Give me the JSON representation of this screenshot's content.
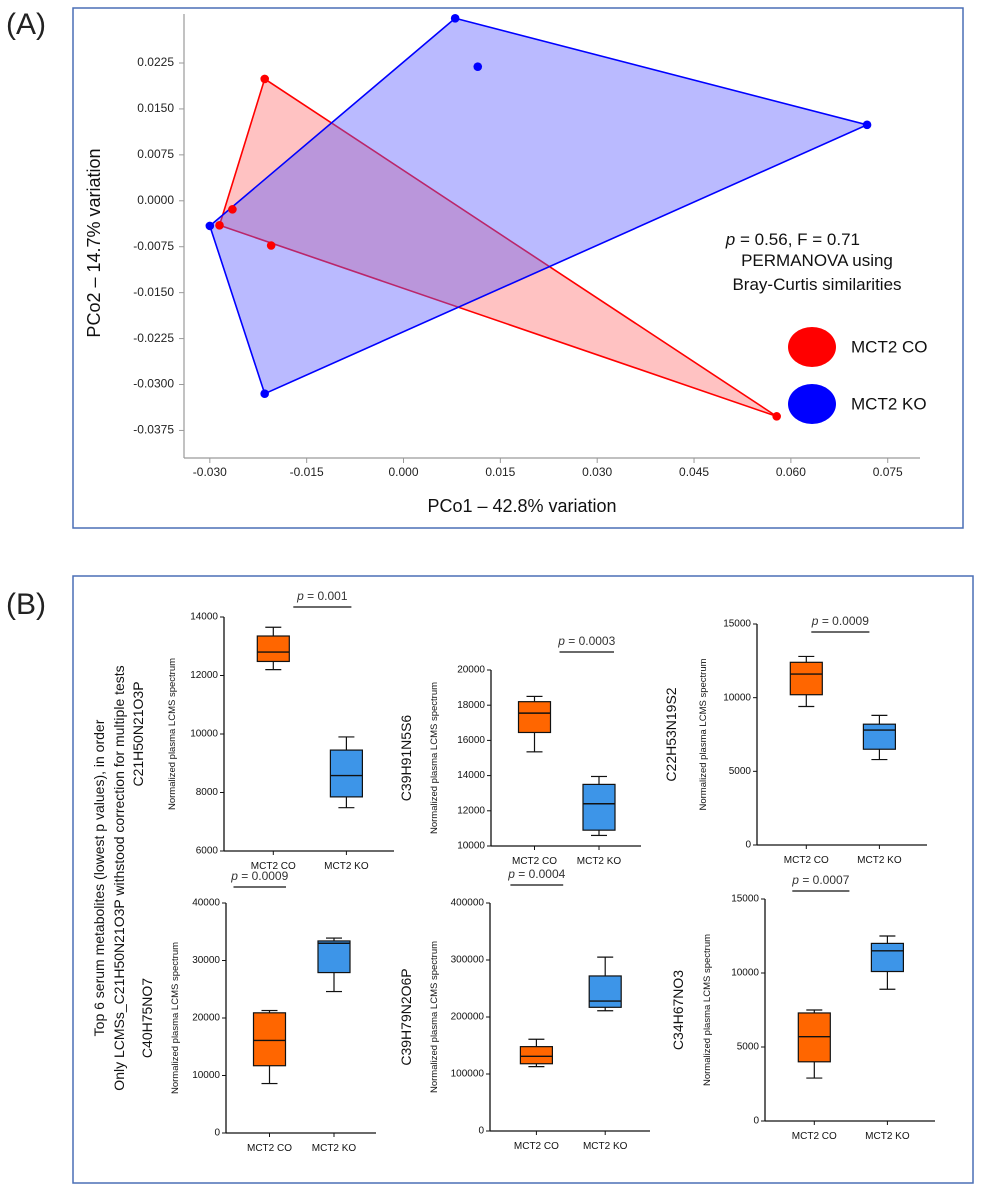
{
  "panel_a": {
    "label": "(A)",
    "stats_line1_p": "p",
    "stats_line1_rest": " = 0.56, F = 0.71",
    "stats_line2": "PERMANOVA  using",
    "stats_line3": "Bray-Curtis similarities",
    "legend": [
      {
        "label": "MCT2 CO",
        "color": "#ff0000"
      },
      {
        "label": "MCT2 KO",
        "color": "#0000ff"
      }
    ]
  },
  "panel_b": {
    "label": "(B)",
    "side_text_line1": "Top 6 serum metabolites (lowest p values), in order",
    "side_text_line2": "Only LCMSs_C21H50N21O3P  withstood correction for multiple tests"
  },
  "chart_data": [
    {
      "type": "scatter",
      "title": "",
      "xlabel": "PCo1 – 42.8% variation",
      "ylabel": "PCo2 – 14.7% variation",
      "xlim": [
        -0.034,
        0.08
      ],
      "ylim": [
        -0.042,
        0.0305
      ],
      "xticks": [
        "-0.030",
        "-0.015",
        "0.000",
        "0.015",
        "0.030",
        "0.045",
        "0.060",
        "0.075"
      ],
      "xtick_values": [
        -0.03,
        -0.015,
        0.0,
        0.015,
        0.03,
        0.045,
        0.06,
        0.075
      ],
      "yticks": [
        "0.0225",
        "0.0150",
        "0.0075",
        "0.0000",
        "-0.0075",
        "-0.0150",
        "-0.0225",
        "-0.0300",
        "-0.0375"
      ],
      "ytick_values": [
        0.0225,
        0.015,
        0.0075,
        0.0,
        -0.0075,
        -0.015,
        -0.0225,
        -0.03,
        -0.0375
      ],
      "series": [
        {
          "name": "MCT2 CO",
          "color": "#ff0000",
          "fill": "rgba(255,120,120,0.45)",
          "points": [
            [
              -0.0215,
              0.0199
            ],
            [
              -0.0265,
              -0.0014
            ],
            [
              -0.0285,
              -0.004
            ],
            [
              -0.0205,
              -0.0073
            ],
            [
              0.0578,
              -0.0352
            ]
          ],
          "hull": [
            [
              -0.0215,
              0.0199
            ],
            [
              -0.0285,
              -0.004
            ],
            [
              0.0578,
              -0.0352
            ]
          ]
        },
        {
          "name": "MCT2 KO",
          "color": "#0000ff",
          "fill": "rgba(90,90,255,0.42)",
          "points": [
            [
              0.008,
              0.0298
            ],
            [
              0.0115,
              0.0219
            ],
            [
              0.0718,
              0.0124
            ],
            [
              -0.03,
              -0.0041
            ],
            [
              -0.0215,
              -0.0315
            ]
          ],
          "hull": [
            [
              0.008,
              0.0298
            ],
            [
              0.0718,
              0.0124
            ],
            [
              -0.0215,
              -0.0315
            ],
            [
              -0.03,
              -0.0041
            ]
          ]
        }
      ]
    },
    {
      "type": "box",
      "title": "C21H50N21O3P",
      "ylabel": "Normalized plasma LCMS spectrum",
      "categories": [
        "MCT2 CO",
        "MCT2 KO"
      ],
      "ylim": [
        6000,
        14000
      ],
      "yticks": [
        "6000",
        "8000",
        "10000",
        "12000",
        "14000"
      ],
      "ytick_values": [
        6000,
        8000,
        10000,
        12000,
        14000
      ],
      "p_italic": "p",
      "p_rest": " = 0.001",
      "boxes": [
        {
          "min": 12200,
          "q1": 12480,
          "median": 12800,
          "q3": 13350,
          "max": 13650,
          "color": "#ff6600"
        },
        {
          "min": 7480,
          "q1": 7850,
          "median": 8580,
          "q3": 9450,
          "max": 9900,
          "color": "#3d95e8"
        }
      ]
    },
    {
      "type": "box",
      "title": "C39H91N5S6",
      "ylabel": "Normalized plasma LCMS spectrum",
      "categories": [
        "MCT2 CO",
        "MCT2 KO"
      ],
      "ylim": [
        10000,
        20000
      ],
      "yticks": [
        "10000",
        "12000",
        "14000",
        "16000",
        "18000",
        "20000"
      ],
      "ytick_values": [
        10000,
        12000,
        14000,
        16000,
        18000,
        20000
      ],
      "p_italic": "p",
      "p_rest": " = 0.0003",
      "boxes": [
        {
          "min": 15350,
          "q1": 16450,
          "median": 17550,
          "q3": 18200,
          "max": 18500,
          "color": "#ff6600"
        },
        {
          "min": 10600,
          "q1": 10900,
          "median": 12400,
          "q3": 13500,
          "max": 13950,
          "color": "#3d95e8"
        }
      ]
    },
    {
      "type": "box",
      "title": "C22H53N19S2",
      "ylabel": "Normalized plasma LCMS spectrum",
      "categories": [
        "MCT2 CO",
        "MCT2 KO"
      ],
      "ylim": [
        0,
        15000
      ],
      "yticks": [
        "0",
        "5000",
        "10000",
        "15000"
      ],
      "ytick_values": [
        0,
        5000,
        10000,
        15000
      ],
      "p_italic": "p",
      "p_rest": " = 0.0009",
      "boxes": [
        {
          "min": 9400,
          "q1": 10200,
          "median": 11600,
          "q3": 12400,
          "max": 12800,
          "color": "#ff6600"
        },
        {
          "min": 5800,
          "q1": 6500,
          "median": 7800,
          "q3": 8200,
          "max": 8800,
          "color": "#3d95e8"
        }
      ]
    },
    {
      "type": "box",
      "title": "C40H75NO7",
      "ylabel": "Normalized plasma LCMS spectrum",
      "categories": [
        "MCT2 CO",
        "MCT2 KO"
      ],
      "ylim": [
        0,
        40000
      ],
      "yticks": [
        "0",
        "10000",
        "20000",
        "30000",
        "40000"
      ],
      "ytick_values": [
        0,
        10000,
        20000,
        30000,
        40000
      ],
      "p_italic": "p",
      "p_rest": " = 0.0009",
      "boxes": [
        {
          "min": 8600,
          "q1": 11700,
          "median": 16100,
          "q3": 20900,
          "max": 21300,
          "color": "#ff6600"
        },
        {
          "min": 24600,
          "q1": 27900,
          "median": 33000,
          "q3": 33400,
          "max": 33900,
          "color": "#3d95e8"
        }
      ]
    },
    {
      "type": "box",
      "title": "C39H79N2O6P",
      "ylabel": "Normalized plasma LCMS spectrum",
      "categories": [
        "MCT2 CO",
        "MCT2 KO"
      ],
      "ylim": [
        0,
        400000
      ],
      "yticks": [
        "0",
        "100000",
        "200000",
        "300000",
        "400000"
      ],
      "ytick_values": [
        0,
        100000,
        200000,
        300000,
        400000
      ],
      "p_italic": "p",
      "p_rest": " = 0.0004",
      "boxes": [
        {
          "min": 113000,
          "q1": 118000,
          "median": 131000,
          "q3": 148000,
          "max": 161000,
          "color": "#ff6600"
        },
        {
          "min": 211000,
          "q1": 217000,
          "median": 228000,
          "q3": 272000,
          "max": 305000,
          "color": "#3d95e8"
        }
      ]
    },
    {
      "type": "box",
      "title": "C34H67NO3",
      "ylabel": "Normalized plasma LCMS spectrum",
      "categories": [
        "MCT2 CO",
        "MCT2 KO"
      ],
      "ylim": [
        0,
        15000
      ],
      "yticks": [
        "0",
        "5000",
        "10000",
        "15000"
      ],
      "ytick_values": [
        0,
        5000,
        10000,
        15000
      ],
      "p_italic": "p",
      "p_rest": " = 0.0007",
      "boxes": [
        {
          "min": 2900,
          "q1": 4000,
          "median": 5700,
          "q3": 7300,
          "max": 7500,
          "color": "#ff6600"
        },
        {
          "min": 8900,
          "q1": 10100,
          "median": 11500,
          "q3": 12000,
          "max": 12500,
          "color": "#3d95e8"
        }
      ]
    }
  ]
}
